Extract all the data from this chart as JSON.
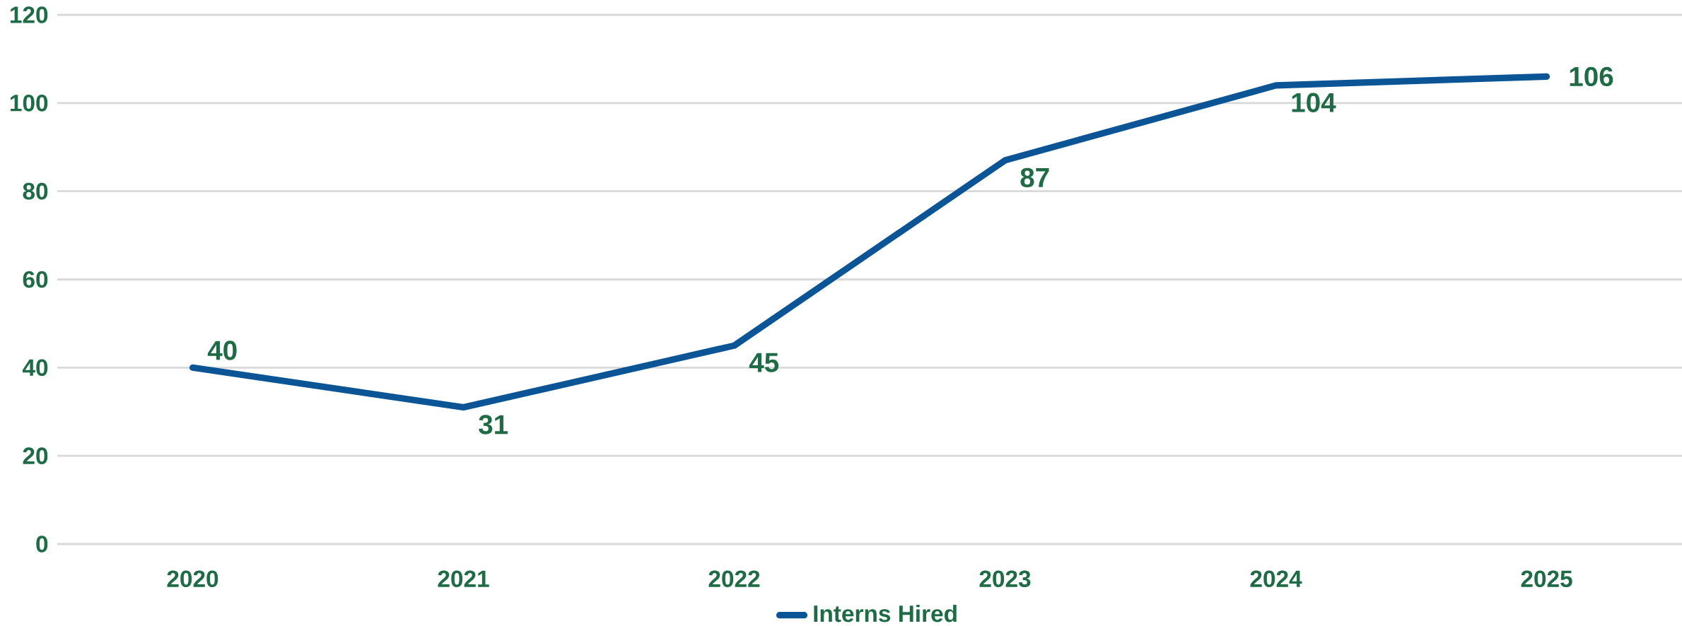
{
  "chart_data": {
    "type": "line",
    "categories": [
      "2020",
      "2021",
      "2022",
      "2023",
      "2024",
      "2025"
    ],
    "series": [
      {
        "name": "Interns Hired",
        "color": "#0b5495",
        "values": [
          40,
          31,
          45,
          87,
          104,
          106
        ]
      }
    ],
    "ylim": [
      0,
      120
    ],
    "yticks": [
      0,
      20,
      40,
      60,
      80,
      100,
      120
    ],
    "grid": "y",
    "legend": "bottom",
    "data_labels": true,
    "marker": "none",
    "line_style": "solid"
  }
}
